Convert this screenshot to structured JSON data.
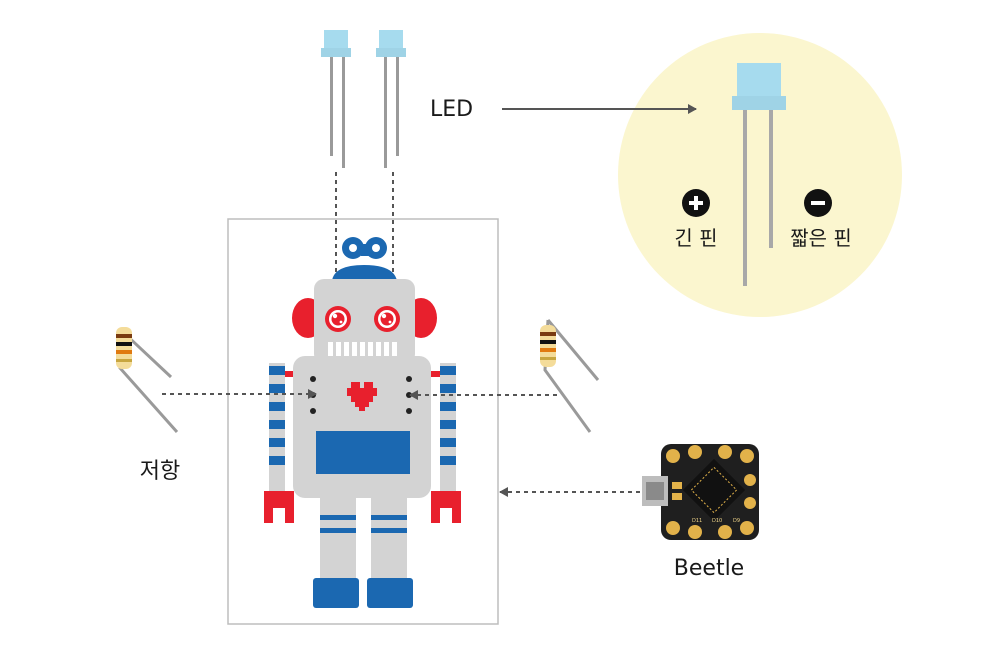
{
  "labels": {
    "led": "LED",
    "long_pin": "긴 핀",
    "short_pin": "짧은 핀",
    "resistor": "저항",
    "beetle": "Beetle",
    "plus_symbol": "+",
    "minus_symbol": "−"
  },
  "board_pins": {
    "bottom": [
      "D11",
      "D10",
      "D9"
    ]
  },
  "colors": {
    "callout_bg": "#fbf6cf",
    "robot_body": "#d3d3d3",
    "robot_blue": "#1b68b1",
    "robot_red": "#e8202d",
    "led_lens": "#a6dbee",
    "lead_gray": "#9a9a9a",
    "arrow": "#555555"
  }
}
